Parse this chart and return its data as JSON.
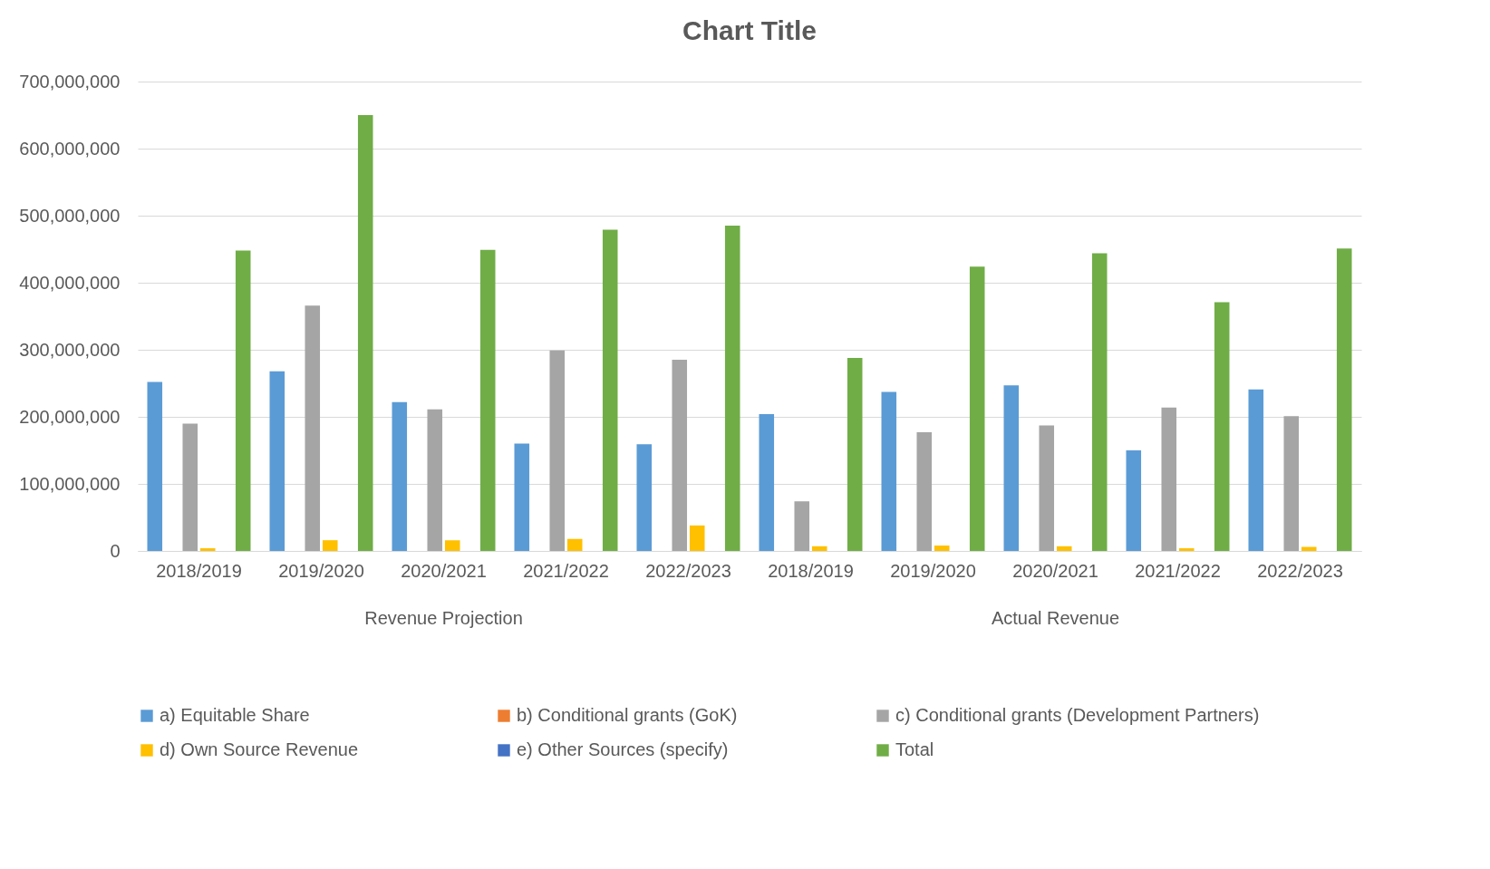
{
  "chart_data": {
    "type": "bar",
    "title": "Chart Title",
    "categories": [
      "2018/2019",
      "2019/2020",
      "2020/2021",
      "2021/2022",
      "2022/2023",
      "2018/2019",
      "2019/2020",
      "2020/2021",
      "2021/2022",
      "2022/2023"
    ],
    "annotations": [
      "Revenue Projection",
      "Actual Revenue"
    ],
    "series": [
      {
        "name": "a)  Equitable Share",
        "color": "#5b9bd5",
        "values": [
          252000000,
          268000000,
          222000000,
          160000000,
          159000000,
          204000000,
          237000000,
          247000000,
          150000000,
          241000000
        ]
      },
      {
        "name": "b) Conditional grants (GoK)",
        "color": "#ed7d31",
        "values": [
          0,
          0,
          0,
          0,
          0,
          0,
          0,
          0,
          0,
          0
        ]
      },
      {
        "name": "c) Conditional grants (Development Partners)",
        "color": "#a5a5a5",
        "values": [
          190000000,
          366000000,
          211000000,
          299000000,
          285000000,
          74000000,
          177000000,
          187000000,
          214000000,
          201000000
        ]
      },
      {
        "name": "d) Own Source Revenue",
        "color": "#ffc000",
        "values": [
          4000000,
          16000000,
          16000000,
          18000000,
          38000000,
          7000000,
          8000000,
          7000000,
          4000000,
          6000000
        ]
      },
      {
        "name": "e) Other Sources (specify)",
        "color": "#4472c4",
        "values": [
          0,
          0,
          0,
          0,
          0,
          0,
          0,
          0,
          0,
          0
        ]
      },
      {
        "name": "Total",
        "color": "#70ad47",
        "values": [
          448000000,
          650000000,
          449000000,
          479000000,
          485000000,
          288000000,
          424000000,
          444000000,
          371000000,
          451000000
        ]
      }
    ],
    "ylim": [
      0,
      700000000
    ],
    "yticks": [
      0,
      {
        "value": 100000000,
        "label": "100,000,000"
      },
      {
        "value": 200000000,
        "label": "200,000,000"
      },
      {
        "value": 300000000,
        "label": "300,000,000"
      },
      {
        "value": 400000000,
        "label": "400,000,000"
      },
      {
        "value": 500000000,
        "label": "500,000,000"
      },
      {
        "value": 600000000,
        "label": "600,000,000"
      },
      {
        "value": 700000000,
        "label": "700,000,000"
      }
    ],
    "grid": "y",
    "legend": "bottom"
  }
}
